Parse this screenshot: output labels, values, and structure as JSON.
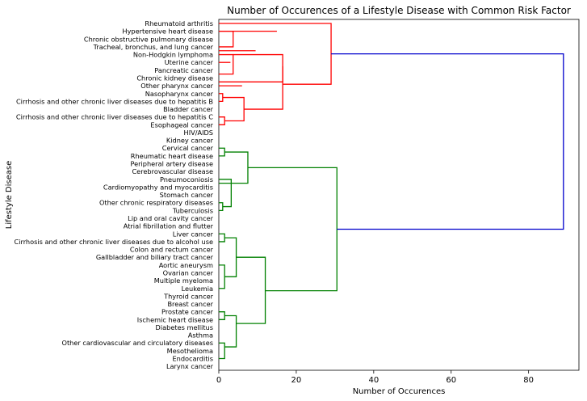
{
  "chart_data": {
    "type": "dendrogram",
    "title": "Number of Occurences of a Lifestyle Disease with Common Risk Factor",
    "xlabel": "Number of Occurences",
    "ylabel": "Lifestyle Disease",
    "xlim": [
      0,
      93
    ],
    "xticks": [
      0,
      20,
      40,
      60,
      80
    ],
    "colors": {
      "cluster_a": "#ff0000",
      "cluster_b": "#008000",
      "root": "#0000cc"
    },
    "leaves": [
      "Rheumatoid arthritis",
      "Hypertensive heart disease",
      "Chronic obstructive pulmonary disease",
      "Tracheal, bronchus, and lung cancer",
      "Non-Hodgkin lymphoma",
      "Uterine cancer",
      "Pancreatic cancer",
      "Chronic kidney disease",
      "Other pharynx cancer",
      "Nasopharynx cancer",
      "Cirrhosis and other chronic liver diseases due to hepatitis B",
      "Bladder cancer",
      "Cirrhosis and other chronic liver diseases due to hepatitis C",
      "Esophageal cancer",
      "HIV/AIDS",
      "Kidney cancer",
      "Cervical cancer",
      "Rheumatic heart disease",
      "Peripheral artery disease",
      "Cerebrovascular disease",
      "Pneumoconiosis",
      "Cardiomyopathy and myocarditis",
      "Stomach cancer",
      "Other chronic respiratory diseases",
      "Tuberculosis",
      "Lip and oral cavity cancer",
      "Atrial fibrillation and flutter",
      "Liver cancer",
      "Cirrhosis and other chronic liver diseases due to alcohol use",
      "Colon and rectum cancer",
      "Gallbladder and biliary tract cancer",
      "Aortic aneurysm",
      "Ovarian cancer",
      "Multiple myeloma",
      "Leukemia",
      "Thyroid cancer",
      "Breast cancer",
      "Prostate cancer",
      "Ischemic heart disease",
      "Diabetes mellitus",
      "Asthma",
      "Other cardiovascular and circulatory diseases",
      "Mesothelioma",
      "Endocarditis",
      "Larynx cancer"
    ],
    "links": [
      {
        "a": [
          0,
          5
        ],
        "b": [
          3,
          5
        ],
        "h": 0.0,
        "c": "cluster_a"
      },
      {
        "a": [
          0,
          8
        ],
        "b": [
          6,
          8
        ],
        "h": 0.0,
        "c": "cluster_a"
      },
      {
        "a": [
          9.5,
          3.5
        ],
        "b": [
          9.5,
          3.5
        ],
        "h": 0.0,
        "c": "cluster_a"
      },
      {
        "a": [
          12.5,
          1
        ],
        "b": [
          15,
          1
        ],
        "h": 0.0,
        "c": "cluster_a"
      },
      {
        "a": [
          0,
          1
        ],
        "b": [
          0,
          3
        ],
        "h": 3.7,
        "c": "cluster_a"
      },
      {
        "a": [
          0,
          9
        ],
        "b": [
          0,
          10
        ],
        "h": 1.0,
        "c": "cluster_a"
      },
      {
        "a": [
          0,
          12
        ],
        "b": [
          0,
          13
        ],
        "h": 1.5,
        "c": "cluster_a"
      },
      {
        "a": [
          0,
          4
        ],
        "b": [
          0,
          6.5
        ],
        "h": 3.7,
        "c": "cluster_a"
      },
      {
        "a": [
          3.7,
          4
        ],
        "b": [
          0,
          7.5
        ],
        "h": 16.5,
        "c": "cluster_a"
      },
      {
        "a": [
          1,
          9.5
        ],
        "b": [
          1.5,
          12.5
        ],
        "h": 6.5,
        "c": "cluster_a"
      },
      {
        "a": [
          16.5,
          5.5
        ],
        "b": [
          6.5,
          11
        ],
        "h": 16.5,
        "c": "cluster_a"
      },
      {
        "a": [
          0,
          0
        ],
        "b": [
          16.5,
          7.8
        ],
        "h": 29.0,
        "c": "cluster_a"
      },
      {
        "a": [
          0,
          16
        ],
        "b": [
          0,
          17
        ],
        "h": 1.5,
        "c": "cluster_b"
      },
      {
        "a": [
          1.5,
          16.5
        ],
        "b": [
          0,
          20.5
        ],
        "h": 7.5,
        "c": "cluster_b"
      },
      {
        "a": [
          0,
          20
        ],
        "b": [
          1,
          23.5
        ],
        "h": 3.2,
        "c": "cluster_b"
      },
      {
        "a": [
          0,
          23
        ],
        "b": [
          0,
          24
        ],
        "h": 1.0,
        "c": "cluster_b"
      },
      {
        "a": [
          3.2,
          21.6
        ],
        "b": [
          3.2,
          21.6
        ],
        "h": 3.2,
        "c": "cluster_b"
      },
      {
        "a": [
          0,
          27
        ],
        "b": [
          0,
          28
        ],
        "h": 1.5,
        "c": "cluster_b"
      },
      {
        "a": [
          1.5,
          27.5
        ],
        "b": [
          1.5,
          32.5
        ],
        "h": 4.5,
        "c": "cluster_b"
      },
      {
        "a": [
          0,
          31
        ],
        "b": [
          0,
          34
        ],
        "h": 1.5,
        "c": "cluster_b"
      },
      {
        "a": [
          4.5,
          30
        ],
        "b": [
          4.5,
          38.5
        ],
        "h": 12.0,
        "c": "cluster_b"
      },
      {
        "a": [
          0,
          37
        ],
        "b": [
          0,
          38
        ],
        "h": 1.5,
        "c": "cluster_b"
      },
      {
        "a": [
          1.5,
          37.5
        ],
        "b": [
          1.5,
          41.5
        ],
        "h": 4.5,
        "c": "cluster_b"
      },
      {
        "a": [
          0,
          41
        ],
        "b": [
          0,
          43
        ],
        "h": 1.5,
        "c": "cluster_b"
      },
      {
        "a": [
          7.5,
          18.5
        ],
        "b": [
          12.0,
          34.3
        ],
        "h": 30.5,
        "c": "cluster_b"
      },
      {
        "a": [
          29.0,
          3.9
        ],
        "b": [
          30.5,
          26.4
        ],
        "h": 89.0,
        "c": "root"
      }
    ]
  }
}
